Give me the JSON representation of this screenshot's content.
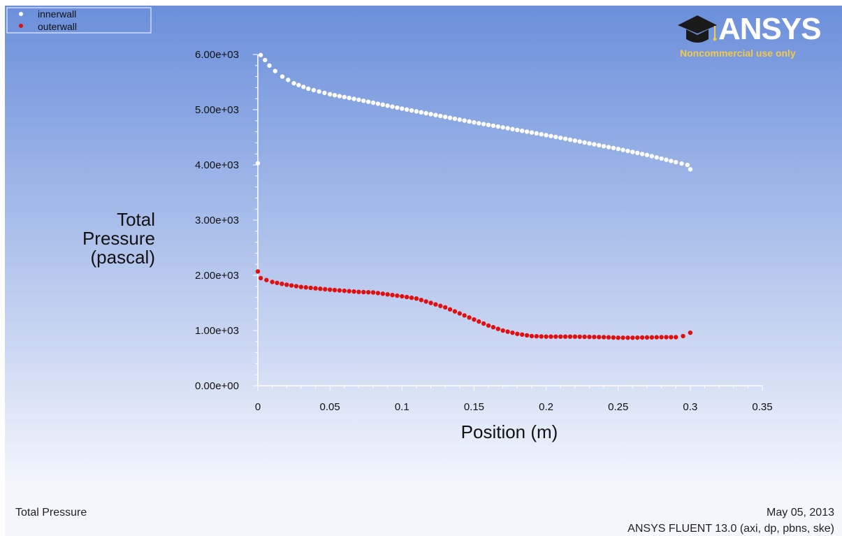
{
  "logo": {
    "word": "ANSYS",
    "subtitle": "Noncommercial use only",
    "subtitle_color": "#f2c94c",
    "icon": "graduation-cap-icon"
  },
  "footer": {
    "left": "Total Pressure",
    "date": "May 05, 2013",
    "version": "ANSYS FLUENT 13.0 (axi, dp, pbns, ske)"
  },
  "colors": {
    "background_top": "#6b8fdb",
    "background_bottom": "#f2f5fc",
    "innerwall": "#ffffff",
    "outerwall": "#e01010"
  },
  "chart_data": {
    "type": "scatter",
    "xlabel": "Position (m)",
    "ylabel_lines": [
      "Total",
      "Pressure",
      "(pascal)"
    ],
    "xlim": [
      0,
      0.35
    ],
    "ylim": [
      0,
      6000
    ],
    "x_ticks": [
      0,
      0.05,
      0.1,
      0.15,
      0.2,
      0.25,
      0.3,
      0.35
    ],
    "x_tick_labels": [
      "0",
      "0.05",
      "0.1",
      "0.15",
      "0.2",
      "0.25",
      "0.3",
      "0.35"
    ],
    "y_ticks": [
      0,
      1000,
      2000,
      3000,
      4000,
      5000,
      6000
    ],
    "y_tick_labels": [
      "0.00e+00",
      "1.00e+03",
      "2.00e+03",
      "3.00e+03",
      "4.00e+03",
      "5.00e+03",
      "6.00e+03"
    ],
    "legend": {
      "position": "top-left"
    },
    "series": [
      {
        "name": "innerwall",
        "color": "#ffffff",
        "points": [
          [
            0,
            4030
          ],
          [
            0.002,
            5990
          ],
          [
            0.005,
            5900
          ],
          [
            0.008,
            5800
          ],
          [
            0.012,
            5700
          ],
          [
            0.017,
            5600
          ],
          [
            0.025,
            5480
          ],
          [
            0.035,
            5380
          ],
          [
            0.05,
            5280
          ],
          [
            0.07,
            5180
          ],
          [
            0.1,
            5020
          ],
          [
            0.13,
            4870
          ],
          [
            0.15,
            4770
          ],
          [
            0.17,
            4680
          ],
          [
            0.2,
            4540
          ],
          [
            0.22,
            4440
          ],
          [
            0.25,
            4290
          ],
          [
            0.27,
            4180
          ],
          [
            0.29,
            4050
          ],
          [
            0.298,
            4000
          ],
          [
            0.3,
            3920
          ]
        ]
      },
      {
        "name": "outerwall",
        "color": "#e01010",
        "points": [
          [
            0,
            2070
          ],
          [
            0.002,
            1950
          ],
          [
            0.01,
            1880
          ],
          [
            0.02,
            1830
          ],
          [
            0.03,
            1790
          ],
          [
            0.05,
            1740
          ],
          [
            0.07,
            1700
          ],
          [
            0.08,
            1690
          ],
          [
            0.1,
            1620
          ],
          [
            0.11,
            1580
          ],
          [
            0.12,
            1500
          ],
          [
            0.13,
            1420
          ],
          [
            0.14,
            1310
          ],
          [
            0.15,
            1200
          ],
          [
            0.16,
            1090
          ],
          [
            0.17,
            1000
          ],
          [
            0.18,
            940
          ],
          [
            0.19,
            900
          ],
          [
            0.2,
            890
          ],
          [
            0.22,
            890
          ],
          [
            0.24,
            880
          ],
          [
            0.25,
            870
          ],
          [
            0.26,
            870
          ],
          [
            0.28,
            880
          ],
          [
            0.29,
            880
          ],
          [
            0.295,
            900
          ],
          [
            0.3,
            960
          ]
        ]
      }
    ]
  }
}
